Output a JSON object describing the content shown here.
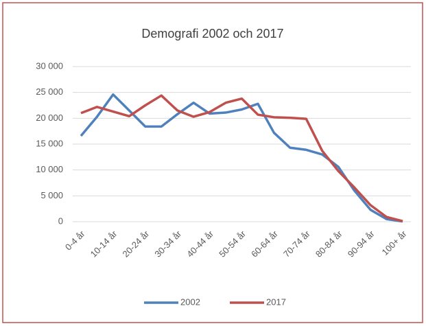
{
  "chart_data": {
    "type": "line",
    "title": "Demografi 2002 och 2017",
    "categories": [
      "0-4 år",
      null,
      "10-14 år",
      null,
      "20-24 år",
      null,
      "30-34 år",
      null,
      "40-44 år",
      null,
      "50-54 år",
      null,
      "60-64 år",
      null,
      "70-74 år",
      null,
      "80-84 år",
      null,
      "90-94 år",
      null,
      "100+ år"
    ],
    "series": [
      {
        "name": "2002",
        "color": "#4f81bd",
        "values": [
          16600,
          20300,
          24600,
          21500,
          18400,
          18400,
          20800,
          23000,
          20900,
          21100,
          21700,
          22800,
          17200,
          14300,
          13900,
          13000,
          10600,
          6000,
          2300,
          500,
          50
        ]
      },
      {
        "name": "2017",
        "color": "#c0504d",
        "values": [
          21000,
          22200,
          21300,
          20400,
          22500,
          24400,
          21500,
          20300,
          21200,
          23000,
          23800,
          20700,
          20200,
          20100,
          19900,
          13700,
          9800,
          6600,
          3200,
          900,
          100
        ]
      }
    ],
    "ylim": [
      0,
      30000
    ],
    "yticks": [
      0,
      {
        "value": 5000,
        "label": "5 000"
      },
      {
        "value": 10000,
        "label": "10 000"
      },
      {
        "value": 15000,
        "label": "15 000"
      },
      {
        "value": 20000,
        "label": "20 000"
      },
      {
        "value": 25000,
        "label": "25 000"
      },
      {
        "value": 30000,
        "label": "30 000"
      }
    ],
    "grid": true,
    "legend": "bottom"
  }
}
